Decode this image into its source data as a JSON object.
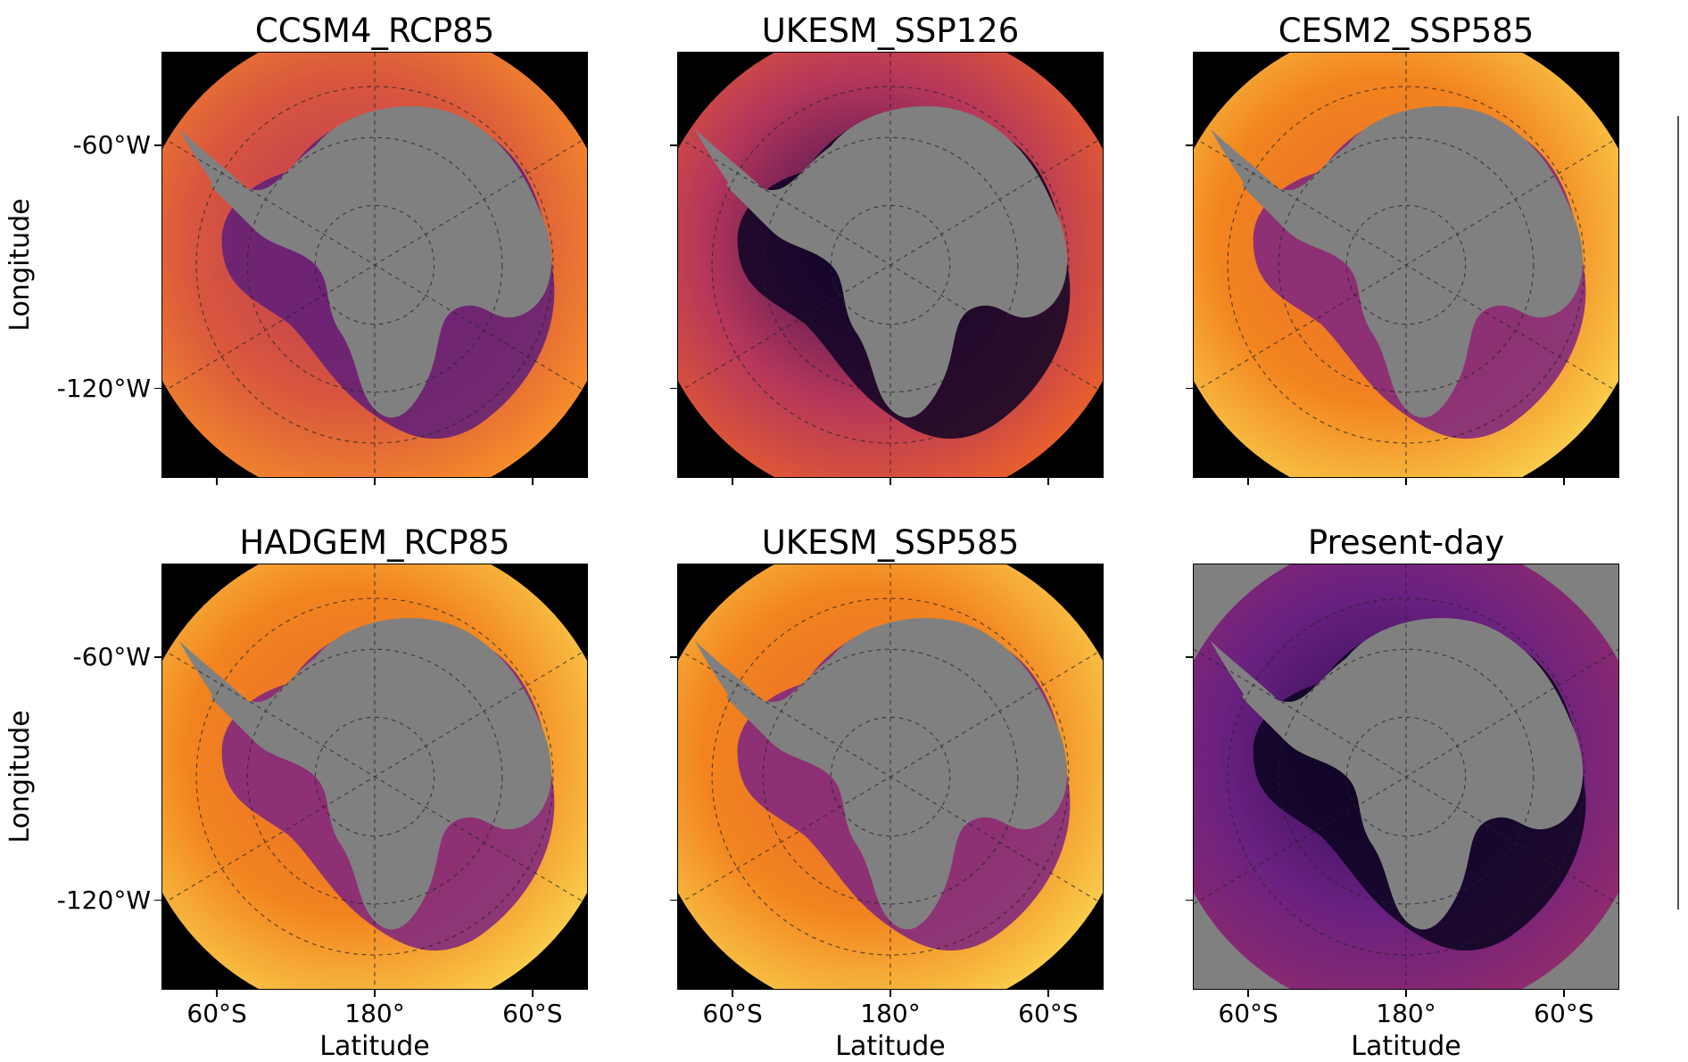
{
  "panels": [
    {
      "title": "CCSM4_RCP85",
      "scheme": "warm",
      "show_ylabels": true
    },
    {
      "title": "UKESM_SSP126",
      "scheme": "dark",
      "show_ylabels": false
    },
    {
      "title": "CESM2_SSP585",
      "scheme": "hot",
      "show_ylabels": false
    },
    {
      "title": "HADGEM_RCP85",
      "scheme": "hot",
      "show_ylabels": true
    },
    {
      "title": "UKESM_SSP585",
      "scheme": "hot",
      "show_ylabels": false
    },
    {
      "title": "Present-day",
      "scheme": "present",
      "show_ylabels": false
    }
  ],
  "axes": {
    "ylabel": "Longitude",
    "xlabel": "Latitude",
    "yticks": [
      "-60°W",
      "-120°W"
    ],
    "xticks": [
      "60°S",
      "180°",
      "60°S"
    ]
  },
  "chart_data": {
    "type": "heatmap",
    "projection": "south polar stereographic",
    "colormap": "inferno",
    "land_color": "#808080",
    "titles": [
      "CCSM4_RCP85",
      "UKESM_SSP126",
      "CESM2_SSP585",
      "HADGEM_RCP85",
      "UKESM_SSP585",
      "Present-day"
    ],
    "xlabel": "Latitude",
    "ylabel": "Longitude",
    "xticks": [
      "60°S",
      "180°",
      "60°S"
    ],
    "yticks": [
      "-60°W",
      "-120°W"
    ],
    "grid": true,
    "layout": "2x3"
  }
}
